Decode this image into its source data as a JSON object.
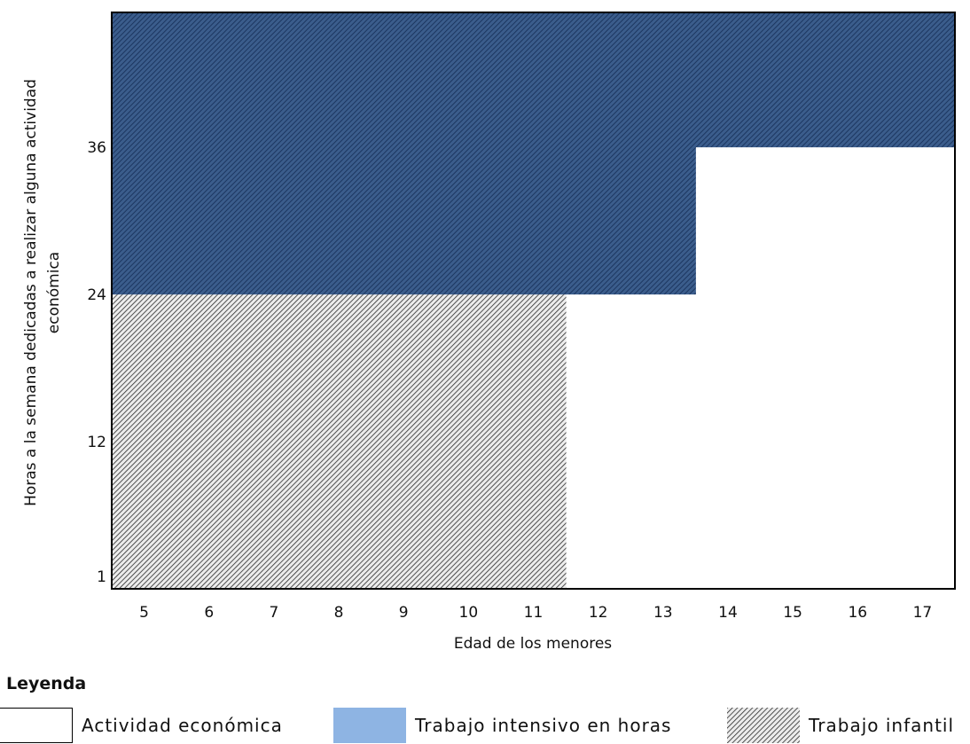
{
  "chart_data": {
    "type": "area",
    "xlabel": "Edad de los menores",
    "ylabel_line1": "Horas a la semana dedicadas a realizar alguna actividad",
    "ylabel_line2": "económica",
    "x_ticks": [
      5,
      6,
      7,
      8,
      9,
      10,
      11,
      12,
      13,
      14,
      15,
      16,
      17
    ],
    "y_ticks": [
      1,
      12,
      24,
      36
    ],
    "xlim": [
      4.5,
      17.5
    ],
    "ylim": [
      0,
      47
    ],
    "regions": [
      {
        "name": "Trabajo infantil",
        "pattern": "gray-hatch",
        "upper_hours_by_age": [
          24,
          24,
          24,
          24,
          24,
          24,
          24,
          0,
          0,
          0,
          0,
          0,
          0
        ]
      },
      {
        "name": "Trabajo intensivo en horas",
        "pattern": "blue-hatch",
        "lower_hours_by_age": [
          24,
          24,
          24,
          24,
          24,
          24,
          24,
          24,
          24,
          36,
          36,
          36,
          36
        ],
        "upper_hours": 47
      },
      {
        "name": "Actividad económica",
        "pattern": "white",
        "description_note": ""
      }
    ],
    "colors": {
      "blue_base": "#3b5d8c",
      "blue_line": "#1c3660",
      "gray_base": "#ececec",
      "gray_line": "#2a2a2a",
      "frame": "#000000"
    }
  },
  "legend": {
    "title": "Leyenda",
    "items": [
      {
        "label": "Actividad económica",
        "swatch": "white"
      },
      {
        "label": "Trabajo intensivo en horas",
        "swatch": "#8eb4e3"
      },
      {
        "label": "Trabajo infantil",
        "swatch": "gray-hatch"
      }
    ]
  }
}
